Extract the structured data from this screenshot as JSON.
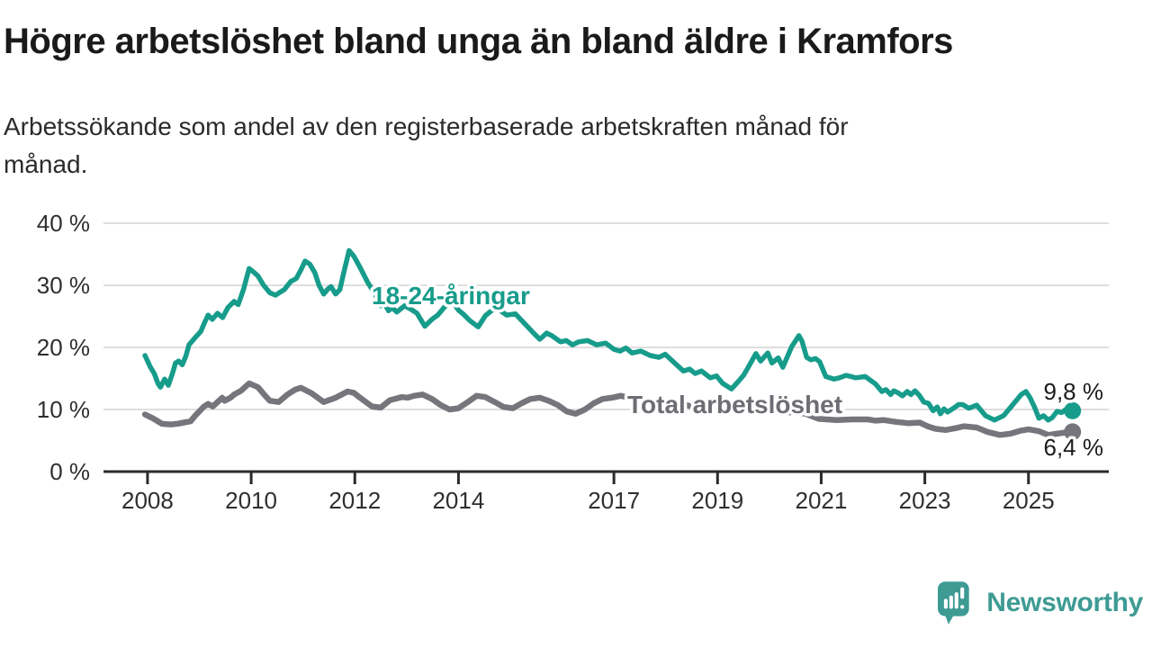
{
  "header": {
    "subtitle_line1": "Arbetssökande som andel av den registerbaserade arbetskraften månad för",
    "subtitle_line2": "månad."
  },
  "chart_data": {
    "type": "line",
    "title": "Högre arbetslöshet bland unga än bland äldre i Kramfors",
    "subtitle": "Arbetssökande som andel av den registerbaserade arbetskraften månad för månad.",
    "unit": "%",
    "grid": true,
    "x_axis": {
      "range": [
        2007.15,
        2026.55
      ],
      "ticks": [
        2008,
        2010,
        2012,
        2014,
        2017,
        2019,
        2021,
        2023,
        2025
      ],
      "tick_labels": [
        "2008",
        "2010",
        "2012",
        "2014",
        "2017",
        "2019",
        "2021",
        "2023",
        "2025"
      ]
    },
    "y_axis": {
      "range": [
        0,
        40
      ],
      "ticks": [
        0,
        10,
        20,
        30,
        40
      ],
      "tick_labels": [
        "0 %",
        "10 %",
        "20 %",
        "30 %",
        "40 %"
      ]
    },
    "series": [
      {
        "name": "Total arbetslöshet",
        "color": "#77757c",
        "label_color": "#6f6d74",
        "stroke_width": 6.5,
        "end_value": 6.4,
        "end_label": "6,4 %",
        "points": [
          [
            2007.95,
            9.2
          ],
          [
            2008.1,
            8.6
          ],
          [
            2008.28,
            7.7
          ],
          [
            2008.45,
            7.6
          ],
          [
            2008.57,
            7.7
          ],
          [
            2008.7,
            7.9
          ],
          [
            2008.83,
            8.1
          ],
          [
            2008.92,
            9.0
          ],
          [
            2009.09,
            10.5
          ],
          [
            2009.17,
            10.9
          ],
          [
            2009.26,
            10.5
          ],
          [
            2009.44,
            11.9
          ],
          [
            2009.49,
            11.4
          ],
          [
            2009.6,
            11.9
          ],
          [
            2009.67,
            12.4
          ],
          [
            2009.8,
            13.0
          ],
          [
            2009.96,
            14.2
          ],
          [
            2010.13,
            13.6
          ],
          [
            2010.25,
            12.4
          ],
          [
            2010.36,
            11.4
          ],
          [
            2010.53,
            11.2
          ],
          [
            2010.7,
            12.4
          ],
          [
            2010.85,
            13.2
          ],
          [
            2010.96,
            13.5
          ],
          [
            2011.1,
            12.9
          ],
          [
            2011.17,
            12.6
          ],
          [
            2011.4,
            11.2
          ],
          [
            2011.63,
            11.9
          ],
          [
            2011.86,
            12.9
          ],
          [
            2011.98,
            12.7
          ],
          [
            2012.1,
            11.9
          ],
          [
            2012.33,
            10.5
          ],
          [
            2012.5,
            10.3
          ],
          [
            2012.68,
            11.5
          ],
          [
            2012.91,
            12.0
          ],
          [
            2013.02,
            11.9
          ],
          [
            2013.14,
            12.2
          ],
          [
            2013.31,
            12.4
          ],
          [
            2013.49,
            11.7
          ],
          [
            2013.66,
            10.7
          ],
          [
            2013.83,
            10.0
          ],
          [
            2014.0,
            10.2
          ],
          [
            2014.18,
            11.2
          ],
          [
            2014.35,
            12.2
          ],
          [
            2014.52,
            12.0
          ],
          [
            2014.7,
            11.2
          ],
          [
            2014.87,
            10.4
          ],
          [
            2015.05,
            10.2
          ],
          [
            2015.22,
            11.0
          ],
          [
            2015.39,
            11.7
          ],
          [
            2015.57,
            11.9
          ],
          [
            2015.74,
            11.4
          ],
          [
            2015.92,
            10.7
          ],
          [
            2016.09,
            9.7
          ],
          [
            2016.26,
            9.3
          ],
          [
            2016.44,
            10.0
          ],
          [
            2016.61,
            11.0
          ],
          [
            2016.78,
            11.7
          ],
          [
            2016.96,
            11.9
          ],
          [
            2017.13,
            12.2
          ],
          [
            2017.3,
            11.9
          ],
          [
            2017.5,
            11.3
          ],
          [
            2017.7,
            10.7
          ],
          [
            2017.9,
            10.4
          ],
          [
            2018.1,
            10.6
          ],
          [
            2018.3,
            10.9
          ],
          [
            2018.5,
            10.5
          ],
          [
            2018.7,
            10.2
          ],
          [
            2018.9,
            10.4
          ],
          [
            2019.1,
            10.6
          ],
          [
            2019.3,
            10.3
          ],
          [
            2019.5,
            10.1
          ],
          [
            2019.7,
            10.2
          ],
          [
            2019.9,
            10.0
          ],
          [
            2020.1,
            9.7
          ],
          [
            2020.3,
            9.5
          ],
          [
            2020.5,
            9.6
          ],
          [
            2020.7,
            9.3
          ],
          [
            2020.95,
            8.5
          ],
          [
            2021.3,
            8.3
          ],
          [
            2021.6,
            8.4
          ],
          [
            2021.9,
            8.4
          ],
          [
            2022.05,
            8.2
          ],
          [
            2022.2,
            8.3
          ],
          [
            2022.45,
            8.0
          ],
          [
            2022.68,
            7.8
          ],
          [
            2022.9,
            7.9
          ],
          [
            2023.05,
            7.3
          ],
          [
            2023.2,
            6.9
          ],
          [
            2023.4,
            6.7
          ],
          [
            2023.6,
            7.0
          ],
          [
            2023.75,
            7.3
          ],
          [
            2024.0,
            7.1
          ],
          [
            2024.2,
            6.4
          ],
          [
            2024.45,
            5.9
          ],
          [
            2024.65,
            6.1
          ],
          [
            2024.85,
            6.6
          ],
          [
            2025.0,
            6.8
          ],
          [
            2025.2,
            6.5
          ],
          [
            2025.38,
            5.9
          ],
          [
            2025.55,
            6.1
          ],
          [
            2025.72,
            6.3
          ],
          [
            2025.85,
            6.4
          ]
        ]
      },
      {
        "name": "18-24-åringar",
        "color": "#179c8b",
        "label_color": "#179c8b",
        "stroke_width": 5.5,
        "end_value": 9.8,
        "end_label": "9,8 %",
        "points": [
          [
            2007.95,
            18.7
          ],
          [
            2008.05,
            16.9
          ],
          [
            2008.13,
            15.8
          ],
          [
            2008.2,
            14.2
          ],
          [
            2008.25,
            13.6
          ],
          [
            2008.33,
            14.9
          ],
          [
            2008.4,
            13.9
          ],
          [
            2008.48,
            15.8
          ],
          [
            2008.54,
            17.5
          ],
          [
            2008.6,
            17.8
          ],
          [
            2008.67,
            17.2
          ],
          [
            2008.74,
            18.6
          ],
          [
            2008.8,
            20.4
          ],
          [
            2008.9,
            21.4
          ],
          [
            2009.03,
            22.6
          ],
          [
            2009.1,
            24.0
          ],
          [
            2009.17,
            25.2
          ],
          [
            2009.25,
            24.5
          ],
          [
            2009.35,
            25.5
          ],
          [
            2009.45,
            24.8
          ],
          [
            2009.55,
            26.4
          ],
          [
            2009.67,
            27.4
          ],
          [
            2009.75,
            26.9
          ],
          [
            2009.85,
            29.3
          ],
          [
            2009.96,
            32.7
          ],
          [
            2010.05,
            32.1
          ],
          [
            2010.13,
            31.5
          ],
          [
            2010.24,
            30.0
          ],
          [
            2010.36,
            28.8
          ],
          [
            2010.47,
            28.4
          ],
          [
            2010.56,
            28.9
          ],
          [
            2010.64,
            29.3
          ],
          [
            2010.76,
            30.6
          ],
          [
            2010.87,
            31.1
          ],
          [
            2010.96,
            32.5
          ],
          [
            2011.04,
            33.9
          ],
          [
            2011.13,
            33.4
          ],
          [
            2011.23,
            32.0
          ],
          [
            2011.31,
            30.0
          ],
          [
            2011.4,
            28.6
          ],
          [
            2011.48,
            29.4
          ],
          [
            2011.54,
            29.8
          ],
          [
            2011.63,
            28.6
          ],
          [
            2011.71,
            29.3
          ],
          [
            2011.8,
            32.5
          ],
          [
            2011.89,
            35.6
          ],
          [
            2011.98,
            34.7
          ],
          [
            2012.1,
            32.9
          ],
          [
            2012.24,
            30.6
          ],
          [
            2012.4,
            28.4
          ],
          [
            2012.5,
            26.7
          ],
          [
            2012.56,
            27.2
          ],
          [
            2012.65,
            25.9
          ],
          [
            2012.72,
            26.4
          ],
          [
            2012.81,
            25.7
          ],
          [
            2012.96,
            26.7
          ],
          [
            2013.07,
            26.2
          ],
          [
            2013.2,
            25.5
          ],
          [
            2013.35,
            23.4
          ],
          [
            2013.5,
            24.6
          ],
          [
            2013.6,
            25.2
          ],
          [
            2013.75,
            26.7
          ],
          [
            2013.9,
            27.2
          ],
          [
            2014.0,
            26.0
          ],
          [
            2014.1,
            25.3
          ],
          [
            2014.22,
            24.3
          ],
          [
            2014.38,
            23.3
          ],
          [
            2014.52,
            25.1
          ],
          [
            2014.65,
            26.0
          ],
          [
            2014.76,
            26.2
          ],
          [
            2014.93,
            25.2
          ],
          [
            2015.1,
            25.4
          ],
          [
            2015.28,
            23.8
          ],
          [
            2015.45,
            22.3
          ],
          [
            2015.57,
            21.3
          ],
          [
            2015.7,
            22.3
          ],
          [
            2015.8,
            21.9
          ],
          [
            2015.97,
            20.9
          ],
          [
            2016.08,
            21.1
          ],
          [
            2016.2,
            20.4
          ],
          [
            2016.32,
            20.9
          ],
          [
            2016.49,
            21.1
          ],
          [
            2016.67,
            20.4
          ],
          [
            2016.84,
            20.7
          ],
          [
            2017.0,
            19.7
          ],
          [
            2017.12,
            19.4
          ],
          [
            2017.23,
            19.9
          ],
          [
            2017.35,
            19.1
          ],
          [
            2017.52,
            19.4
          ],
          [
            2017.7,
            18.7
          ],
          [
            2017.87,
            18.4
          ],
          [
            2017.99,
            18.9
          ],
          [
            2018.17,
            17.5
          ],
          [
            2018.34,
            16.2
          ],
          [
            2018.46,
            16.5
          ],
          [
            2018.57,
            15.8
          ],
          [
            2018.69,
            16.2
          ],
          [
            2018.86,
            15.1
          ],
          [
            2018.98,
            15.4
          ],
          [
            2019.1,
            14.2
          ],
          [
            2019.27,
            13.3
          ],
          [
            2019.4,
            14.5
          ],
          [
            2019.5,
            15.5
          ],
          [
            2019.6,
            16.9
          ],
          [
            2019.74,
            19.0
          ],
          [
            2019.83,
            17.8
          ],
          [
            2019.97,
            19.1
          ],
          [
            2020.05,
            17.5
          ],
          [
            2020.17,
            18.3
          ],
          [
            2020.26,
            16.8
          ],
          [
            2020.43,
            20.1
          ],
          [
            2020.57,
            21.9
          ],
          [
            2020.63,
            21.0
          ],
          [
            2020.72,
            18.4
          ],
          [
            2020.8,
            18.0
          ],
          [
            2020.89,
            18.2
          ],
          [
            2020.97,
            17.7
          ],
          [
            2021.09,
            15.3
          ],
          [
            2021.25,
            14.9
          ],
          [
            2021.35,
            15.1
          ],
          [
            2021.48,
            15.5
          ],
          [
            2021.58,
            15.3
          ],
          [
            2021.66,
            15.1
          ],
          [
            2021.85,
            15.3
          ],
          [
            2021.92,
            14.9
          ],
          [
            2022.05,
            14.1
          ],
          [
            2022.17,
            12.9
          ],
          [
            2022.25,
            13.2
          ],
          [
            2022.34,
            12.4
          ],
          [
            2022.4,
            13.0
          ],
          [
            2022.48,
            12.7
          ],
          [
            2022.57,
            12.2
          ],
          [
            2022.66,
            12.9
          ],
          [
            2022.73,
            12.4
          ],
          [
            2022.81,
            13.0
          ],
          [
            2022.9,
            12.2
          ],
          [
            2022.98,
            11.2
          ],
          [
            2023.07,
            11.0
          ],
          [
            2023.16,
            9.8
          ],
          [
            2023.24,
            10.4
          ],
          [
            2023.3,
            9.3
          ],
          [
            2023.37,
            10.1
          ],
          [
            2023.44,
            9.6
          ],
          [
            2023.57,
            10.3
          ],
          [
            2023.65,
            10.8
          ],
          [
            2023.73,
            10.8
          ],
          [
            2023.85,
            10.2
          ],
          [
            2024.0,
            10.7
          ],
          [
            2024.17,
            9.0
          ],
          [
            2024.34,
            8.3
          ],
          [
            2024.52,
            9.0
          ],
          [
            2024.69,
            10.7
          ],
          [
            2024.86,
            12.4
          ],
          [
            2024.95,
            12.9
          ],
          [
            2025.03,
            11.9
          ],
          [
            2025.12,
            10.3
          ],
          [
            2025.2,
            8.6
          ],
          [
            2025.29,
            9.0
          ],
          [
            2025.38,
            8.3
          ],
          [
            2025.46,
            8.7
          ],
          [
            2025.55,
            9.7
          ],
          [
            2025.64,
            9.5
          ],
          [
            2025.72,
            10.0
          ],
          [
            2025.85,
            9.8
          ]
        ]
      }
    ],
    "annotations": {
      "young_series_label": "18-24-åringar",
      "total_series_label": "Total arbetslöshet",
      "young_end_label": "9,8 %",
      "total_end_label": "6,4 %"
    },
    "legend_position": "inline-labels"
  },
  "logo": {
    "text": "Newsworthy",
    "color": "#3e9b94",
    "icon": "speech-bubble-bar-chart-exclamation"
  }
}
